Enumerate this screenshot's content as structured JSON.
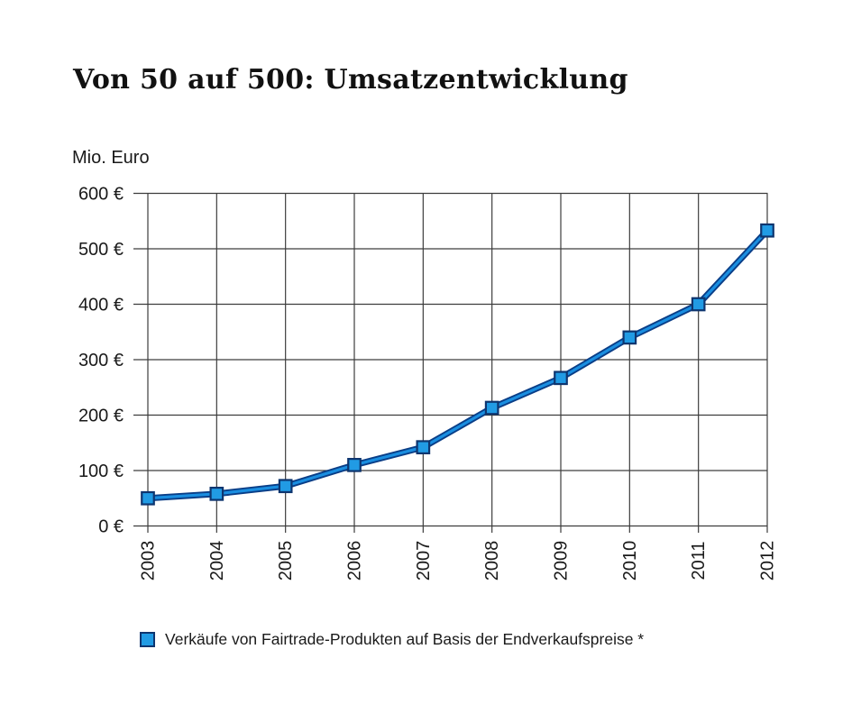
{
  "title": "Von 50 auf 500: Umsatzentwicklung",
  "axis_unit_label": "Mio. Euro",
  "legend": {
    "label": "Verkäufe von Fairtrade-Produkten auf Basis der Endverkaufspreise *"
  },
  "colors": {
    "background": "#ffffff",
    "text": "#1a1a1a",
    "grid": "#3d3d3d",
    "line_core": "#1a8ee0",
    "line_outline": "#0a3e87",
    "marker_fill": "#219be4",
    "marker_border": "#0e356f"
  },
  "chart_data": {
    "type": "line",
    "title": "Von 50 auf 500: Umsatzentwicklung",
    "ylabel": "Mio. Euro",
    "xlabel": "",
    "categories": [
      "2003",
      "2004",
      "2005",
      "2006",
      "2007",
      "2008",
      "2009",
      "2010",
      "2011",
      "2012"
    ],
    "series": [
      {
        "name": "Verkäufe von Fairtrade-Produkten auf Basis der Endverkaufspreise *",
        "values": [
          50,
          58,
          72,
          110,
          142,
          213,
          267,
          340,
          400,
          533
        ]
      }
    ],
    "ylim": [
      0,
      600
    ],
    "ytick_step": 100,
    "ytick_labels": [
      "0 €",
      "100 €",
      "200 €",
      "300 €",
      "400 €",
      "500 €",
      "600 €"
    ],
    "grid": true,
    "marker": "square",
    "legend_position": "bottom",
    "x_tick_rotation": -90
  }
}
